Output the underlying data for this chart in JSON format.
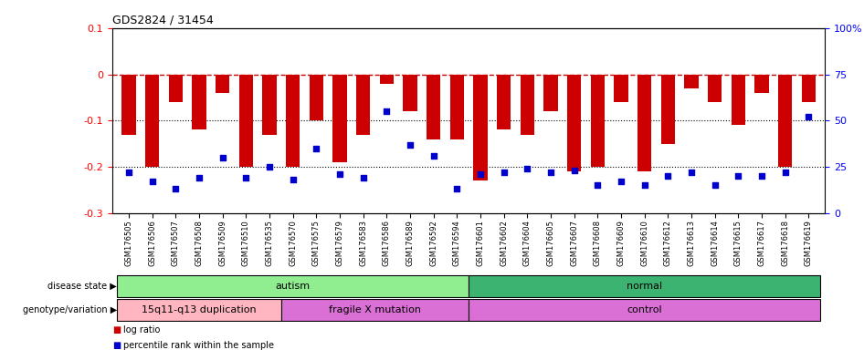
{
  "title": "GDS2824 / 31454",
  "samples": [
    "GSM176505",
    "GSM176506",
    "GSM176507",
    "GSM176508",
    "GSM176509",
    "GSM176510",
    "GSM176535",
    "GSM176570",
    "GSM176575",
    "GSM176579",
    "GSM176583",
    "GSM176586",
    "GSM176589",
    "GSM176592",
    "GSM176594",
    "GSM176601",
    "GSM176602",
    "GSM176604",
    "GSM176605",
    "GSM176607",
    "GSM176608",
    "GSM176609",
    "GSM176610",
    "GSM176612",
    "GSM176613",
    "GSM176614",
    "GSM176615",
    "GSM176617",
    "GSM176618",
    "GSM176619"
  ],
  "log_ratio": [
    -0.13,
    -0.2,
    -0.06,
    -0.12,
    -0.04,
    -0.2,
    -0.13,
    -0.2,
    -0.1,
    -0.19,
    -0.13,
    -0.02,
    -0.08,
    -0.14,
    -0.14,
    -0.23,
    -0.12,
    -0.13,
    -0.08,
    -0.21,
    -0.2,
    -0.06,
    -0.21,
    -0.15,
    -0.03,
    -0.06,
    -0.11,
    -0.04,
    -0.2,
    -0.06
  ],
  "percentile": [
    22,
    17,
    13,
    19,
    30,
    19,
    25,
    18,
    35,
    21,
    19,
    55,
    37,
    31,
    13,
    21,
    22,
    24,
    22,
    23,
    15,
    17,
    15,
    20,
    22,
    15,
    20,
    20,
    22,
    52
  ],
  "disease_state_groups": [
    {
      "label": "autism",
      "start": 0,
      "end": 15,
      "color": "#90ee90"
    },
    {
      "label": "normal",
      "start": 15,
      "end": 30,
      "color": "#3cb371"
    }
  ],
  "genotype_groups": [
    {
      "label": "15q11-q13 duplication",
      "start": 0,
      "end": 7,
      "color": "#ffb6c1"
    },
    {
      "label": "fragile X mutation",
      "start": 7,
      "end": 15,
      "color": "#da70d6"
    },
    {
      "label": "control",
      "start": 15,
      "end": 30,
      "color": "#da70d6"
    }
  ],
  "bar_color": "#cc0000",
  "dot_color": "#0000cc",
  "dashed_color": "#cc0000",
  "ylim_left": [
    -0.3,
    0.1
  ],
  "ylim_right": [
    0,
    100
  ],
  "yticks_left": [
    -0.3,
    -0.2,
    -0.1,
    0,
    0.1
  ],
  "yticks_right": [
    0,
    25,
    50,
    75,
    100
  ],
  "ytick_labels_right": [
    "0",
    "25",
    "50",
    "75",
    "100%"
  ],
  "dotted_lines": [
    -0.1,
    -0.2
  ],
  "legend_items": [
    {
      "label": "log ratio",
      "color": "#cc0000"
    },
    {
      "label": "percentile rank within the sample",
      "color": "#0000cc"
    }
  ]
}
